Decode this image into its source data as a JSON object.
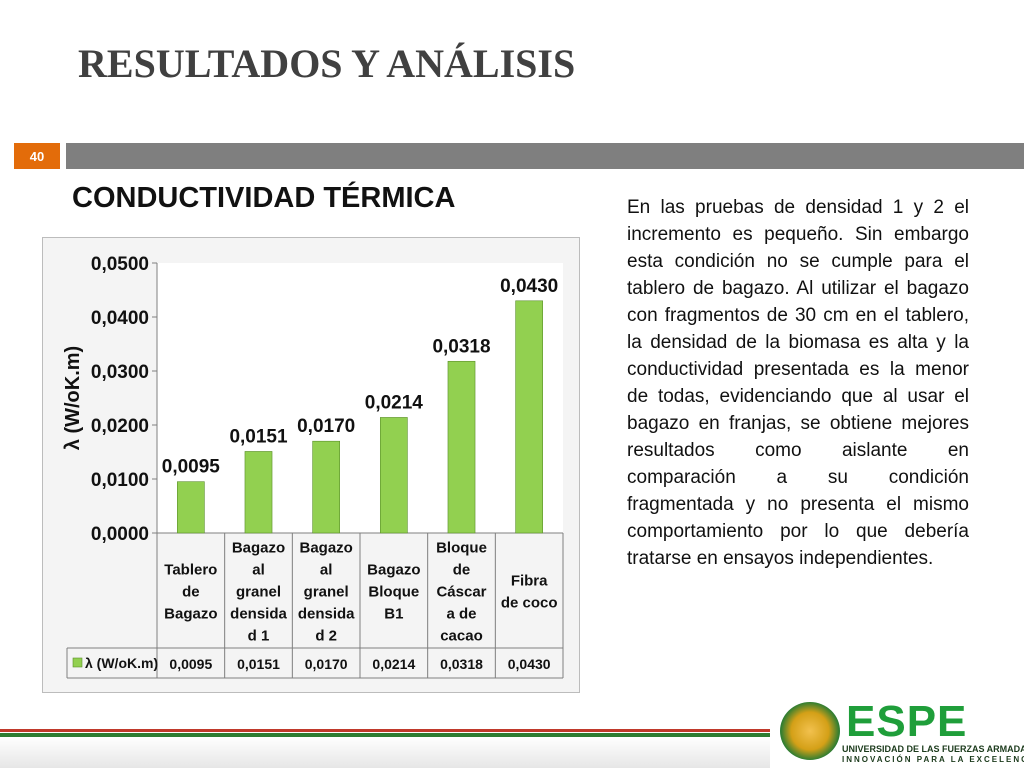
{
  "slide": {
    "title": "RESULTADOS Y ANÁLISIS",
    "page_number": "40",
    "section_heading": "CONDUCTIVIDAD TÉRMICA",
    "body_text": "En las pruebas de densidad 1 y 2 el incremento es pequeño. Sin embargo esta condición no se cumple para el tablero de bagazo. Al utilizar el bagazo con fragmentos de 30 cm en el tablero, la densidad de la biomasa es alta y la conductividad presentada es la menor de todas, evidenciando que al usar el bagazo en franjas, se obtiene mejores resultados como aislante en comparación a su condición fragmentada y no presenta el mismo comportamiento por lo que debería tratarse en ensayos independientes."
  },
  "logo": {
    "name": "ESPE",
    "subtitle": "UNIVERSIDAD DE LAS FUERZAS ARMADAS",
    "tagline": "INNOVACIÓN PARA LA EXCELENCIA"
  },
  "colors": {
    "bar": "#92d050",
    "accent": "#e36c0a",
    "bar_gray": "#7f7f7f"
  },
  "chart_data": {
    "type": "bar",
    "title": "",
    "xlabel": "",
    "ylabel": "λ (W/oK.m)",
    "ylim": [
      0,
      0.05
    ],
    "yticks": [
      "0,0000",
      "0,0100",
      "0,0200",
      "0,0300",
      "0,0400",
      "0,0500"
    ],
    "categories": [
      [
        "Tablero",
        "de",
        "Bagazo"
      ],
      [
        "Bagazo",
        "al",
        "granel",
        "densida",
        "d 1"
      ],
      [
        "Bagazo",
        "al",
        "granel",
        "densida",
        "d 2"
      ],
      [
        "Bagazo",
        "Bloque",
        "B1"
      ],
      [
        "Bloque",
        "de",
        "Cáscar",
        "a de",
        "cacao"
      ],
      [
        "Fibra",
        "de coco"
      ]
    ],
    "series": [
      {
        "name": "λ (W/oK.m)",
        "values": [
          0.0095,
          0.0151,
          0.017,
          0.0214,
          0.0318,
          0.043
        ],
        "labels": [
          "0,0095",
          "0,0151",
          "0,0170",
          "0,0214",
          "0,0318",
          "0,0430"
        ]
      }
    ],
    "legend": "data-table",
    "grid": false
  }
}
